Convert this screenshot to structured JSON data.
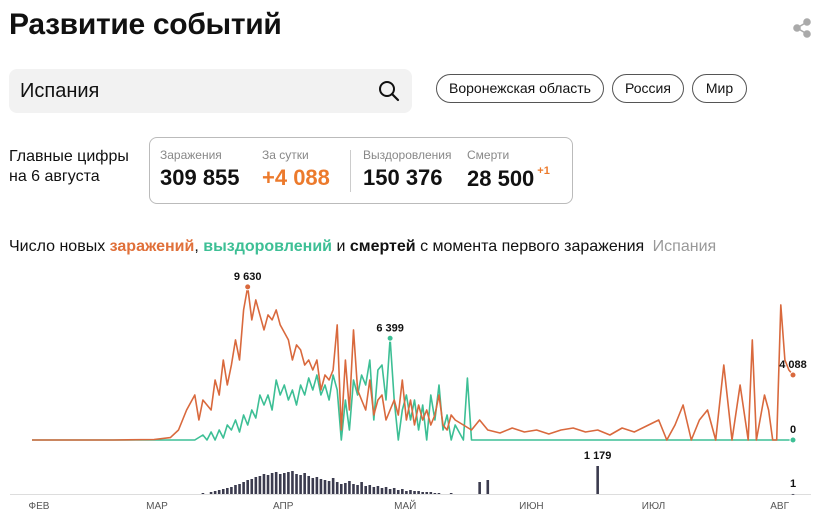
{
  "header": {
    "title": "Развитие событий"
  },
  "search": {
    "value": "Испания"
  },
  "chips": [
    "Воронежская область",
    "Россия",
    "Мир"
  ],
  "summary": {
    "heading": [
      "Главные цифры",
      "на 6 августа"
    ],
    "stats": [
      {
        "label": "Заражения",
        "value": "309 855"
      },
      {
        "label": "За сутки",
        "value": "+4 088"
      },
      {
        "label": "Выздоровления",
        "value": "150 376"
      },
      {
        "label": "Смерти",
        "value": "28 500",
        "delta": "+1"
      }
    ]
  },
  "chart_data": {
    "type": "line",
    "caption": [
      "Число новых",
      ",",
      "и",
      "с момента первого заражения"
    ],
    "region": "Испания",
    "xlim": [
      0,
      187
    ],
    "xticks": [
      {
        "value": 0,
        "label": "ФЕВ"
      },
      {
        "value": 29,
        "label": "МАР"
      },
      {
        "value": 60,
        "label": "АПР"
      },
      {
        "value": 90,
        "label": "МАЙ"
      },
      {
        "value": 121,
        "label": "ИЮН"
      },
      {
        "value": 151,
        "label": "ИЮЛ"
      },
      {
        "value": 182,
        "label": "АВГ"
      }
    ],
    "ylim": [
      0,
      10000
    ],
    "y2lim": [
      0,
      1200
    ],
    "series": [
      {
        "name": "заражений",
        "color": "#d9693d",
        "x": [
          0,
          10,
          20,
          30,
          34,
          36,
          38,
          40,
          41,
          42,
          44,
          45,
          46,
          47,
          48,
          49,
          50,
          51,
          52,
          53,
          54,
          55,
          56,
          57,
          58,
          59,
          60,
          61,
          63,
          64,
          65,
          66,
          67,
          68,
          69,
          70,
          71,
          72,
          73,
          74,
          75,
          76,
          77,
          78,
          79,
          80,
          81,
          82,
          83,
          84,
          85,
          86,
          87,
          88,
          89,
          90,
          91,
          92,
          93,
          94,
          95,
          96,
          97,
          98,
          99,
          100,
          101,
          102,
          103,
          104,
          106,
          108,
          110,
          112,
          115,
          118,
          121,
          124,
          127,
          130,
          133,
          136,
          139,
          142,
          145,
          148,
          151,
          154,
          156,
          158,
          160,
          162,
          164,
          166,
          168,
          170,
          172,
          174,
          176,
          177,
          178,
          180,
          181,
          182,
          183,
          184,
          185,
          186,
          187
        ],
        "values": [
          0,
          0,
          0,
          30,
          150,
          629,
          1888,
          2832,
          1259,
          2517,
          1888,
          3776,
          2832,
          5034,
          3461,
          4720,
          6293,
          5034,
          8181,
          9630,
          7552,
          8810,
          7866,
          6922,
          7866,
          7552,
          8181,
          7237,
          6293,
          5034,
          5978,
          5664,
          4720,
          5034,
          4405,
          5034,
          3146,
          4090,
          3776,
          4405,
          7237,
          629,
          5034,
          1888,
          6922,
          3146,
          2517,
          1888,
          3776,
          1573,
          2517,
          2832,
          1259,
          1888,
          2517,
          1573,
          3776,
          1259,
          2517,
          944,
          2203,
          1259,
          1888,
          944,
          1573,
          2832,
          944,
          629,
          1573,
          1259,
          944,
          629,
          1259,
          629,
          440,
          755,
          503,
          629,
          378,
          629,
          755,
          503,
          629,
          315,
          755,
          503,
          881,
          1259,
          0,
          944,
          2203,
          0,
          1259,
          1888,
          0,
          4720,
          0,
          3461,
          0,
          6293,
          0,
          2832,
          1888,
          0,
          0,
          8495,
          5034,
          4405,
          4088
        ],
        "labels": [
          {
            "x": 53,
            "label": "9 630"
          },
          {
            "x": 187,
            "label": "4 088"
          }
        ]
      },
      {
        "name": "выздоровлений",
        "color": "#3dbf95",
        "x": [
          0,
          40,
          42,
          43,
          44,
          45,
          46,
          47,
          48,
          49,
          50,
          51,
          52,
          53,
          54,
          55,
          56,
          57,
          58,
          59,
          60,
          61,
          62,
          63,
          64,
          65,
          66,
          67,
          68,
          69,
          70,
          71,
          72,
          73,
          74,
          75,
          76,
          77,
          78,
          79,
          80,
          81,
          82,
          83,
          84,
          85,
          86,
          87,
          88,
          89,
          90,
          91,
          92,
          93,
          94,
          95,
          96,
          97,
          98,
          99,
          100,
          101,
          102,
          103,
          104,
          106,
          107,
          108,
          110,
          187
        ],
        "values": [
          0,
          0,
          315,
          0,
          503,
          0,
          629,
          126,
          944,
          629,
          1259,
          503,
          1573,
          944,
          1888,
          1385,
          2832,
          2203,
          2832,
          1888,
          3776,
          2832,
          3461,
          2517,
          3146,
          2203,
          3461,
          2832,
          3902,
          3146,
          4090,
          2832,
          3461,
          2517,
          4090,
          3146,
          0,
          2517,
          629,
          3776,
          2832,
          4090,
          3461,
          5034,
          1259,
          4405,
          4720,
          2517,
          6399,
          2517,
          0,
          1888,
          2832,
          1259,
          2517,
          629,
          2203,
          0,
          2832,
          1259,
          3461,
          629,
          1573,
          0,
          944,
          0,
          3902,
          0,
          0,
          0
        ],
        "labels": [
          {
            "x": 88,
            "label": "6 399"
          },
          {
            "x": 187,
            "label": "0"
          }
        ]
      },
      {
        "name": "смертей",
        "color": "#3b3b4e",
        "axis": "y2",
        "x": [
          42,
          44,
          45,
          46,
          47,
          48,
          49,
          50,
          51,
          52,
          53,
          54,
          55,
          56,
          57,
          58,
          59,
          60,
          61,
          62,
          63,
          64,
          65,
          66,
          67,
          68,
          69,
          70,
          71,
          72,
          73,
          74,
          75,
          76,
          77,
          78,
          79,
          80,
          81,
          82,
          83,
          84,
          85,
          86,
          87,
          88,
          89,
          90,
          91,
          92,
          93,
          94,
          95,
          96,
          97,
          98,
          99,
          100,
          103,
          110,
          112,
          139,
          187
        ],
        "values": [
          42,
          84,
          126,
          168,
          210,
          253,
          295,
          379,
          421,
          505,
          589,
          632,
          716,
          758,
          842,
          800,
          884,
          926,
          842,
          884,
          926,
          968,
          842,
          800,
          884,
          758,
          674,
          716,
          632,
          589,
          547,
          674,
          505,
          421,
          463,
          547,
          421,
          379,
          505,
          337,
          379,
          295,
          337,
          253,
          295,
          210,
          253,
          168,
          210,
          126,
          168,
          126,
          126,
          84,
          84,
          84,
          42,
          42,
          42,
          505,
          589,
          1179,
          1
        ],
        "labels": [
          {
            "x": 139,
            "label": "1 179"
          },
          {
            "x": 187,
            "label": "1"
          }
        ]
      }
    ]
  }
}
